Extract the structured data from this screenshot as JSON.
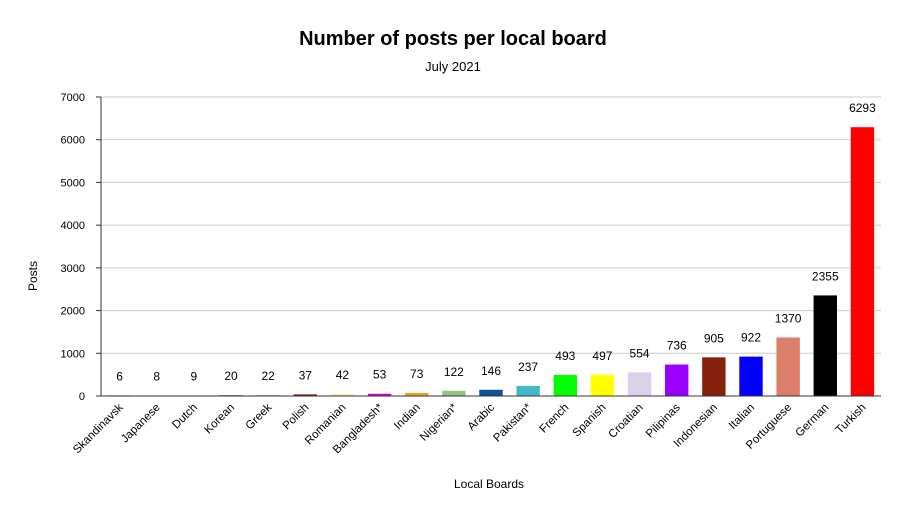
{
  "chart_data": {
    "type": "bar",
    "title": "Number of posts per local board",
    "subtitle": "July 2021",
    "xlabel": "Local Boards",
    "ylabel": "Posts",
    "ylim": [
      0,
      7000
    ],
    "yticks": [
      0,
      1000,
      2000,
      3000,
      4000,
      5000,
      6000,
      7000
    ],
    "grid": true,
    "legend": "none",
    "categories": [
      "Skandinavsk",
      "Japanese",
      "Dutch",
      "Korean",
      "Greek",
      "Polish",
      "Romanian",
      "Bangladesh*",
      "Indian",
      "Nigerian*",
      "Arabic",
      "Pakistan*",
      "French",
      "Spanish",
      "Croatian",
      "Pilipinas",
      "Indonesian",
      "Italian",
      "Portuguese",
      "German",
      "Turkish"
    ],
    "values": [
      6,
      8,
      9,
      20,
      22,
      37,
      42,
      53,
      73,
      122,
      146,
      237,
      493,
      497,
      554,
      736,
      905,
      922,
      1370,
      2355,
      6293
    ],
    "data_labels": [
      "6",
      "8",
      "9",
      "20",
      "22",
      "37",
      "42",
      "53",
      "73",
      "122",
      "146",
      "237",
      "493",
      "497",
      "554",
      "736",
      "905",
      "922",
      "1370",
      "2355",
      "6293"
    ],
    "colors": [
      "#1f2d6b",
      "#e8a8c8",
      "#f5e08a",
      "#3c78d8",
      "#a4c2f4",
      "#990000",
      "#ffe599",
      "#cc00cc",
      "#f1a01f",
      "#93c47d",
      "#0b5394",
      "#45b8c8",
      "#00ff00",
      "#ffff00",
      "#d9d2e9",
      "#9900ff",
      "#85200c",
      "#0000ff",
      "#dd7e6b",
      "#000000",
      "#ff0000"
    ]
  }
}
